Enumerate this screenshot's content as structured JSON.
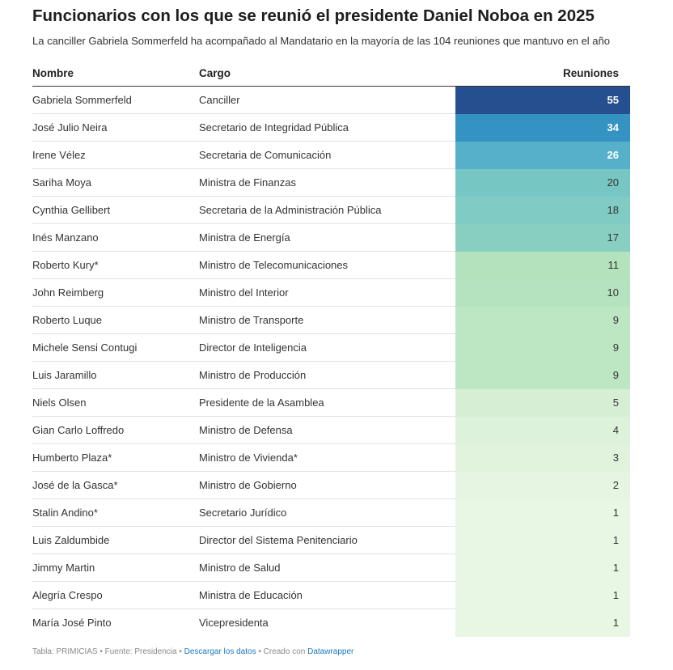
{
  "header": {
    "title": "Funcionarios con los que se reunió el presidente Daniel Noboa en 2025",
    "subtitle": "La canciller Gabriela Sommerfeld ha acompañado al Mandatario en la mayoría de las 104 reuniones que mantuvo en el año"
  },
  "table": {
    "col_name": "Nombre",
    "col_cargo": "Cargo",
    "col_value": "Reuniones"
  },
  "chart_data": {
    "type": "table",
    "title": "Funcionarios con los que se reunió el presidente Daniel Noboa en 2025",
    "columns": [
      "Nombre",
      "Cargo",
      "Reuniones"
    ],
    "rows": [
      {
        "name": "Gabriela Sommerfeld",
        "cargo": "Canciller",
        "value": 55,
        "color": "#264f8f",
        "text_color": "#ffffff"
      },
      {
        "name": "José Julio Neira",
        "cargo": "Secretario de Integridad Pública",
        "value": 34,
        "color": "#3593c4",
        "text_color": "#ffffff"
      },
      {
        "name": "Irene Vélez",
        "cargo": "Secretaria de Comunicación",
        "value": 26,
        "color": "#56b0c9",
        "text_color": "#ffffff"
      },
      {
        "name": "Sariha Moya",
        "cargo": "Ministra de Finanzas",
        "value": 20,
        "color": "#76c6c4",
        "text_color": "#333333"
      },
      {
        "name": "Cynthia Gellibert",
        "cargo": "Secretaria de la Administración Pública",
        "value": 18,
        "color": "#80cbc3",
        "text_color": "#333333"
      },
      {
        "name": "Inés Manzano",
        "cargo": "Ministra de Energía",
        "value": 17,
        "color": "#88cfc1",
        "text_color": "#333333"
      },
      {
        "name": "Roberto Kury*",
        "cargo": "Ministro de Telecomunicaciones",
        "value": 11,
        "color": "#b3e2bd",
        "text_color": "#333333"
      },
      {
        "name": "John Reimberg",
        "cargo": "Ministro del Interior",
        "value": 10,
        "color": "#b6e3bf",
        "text_color": "#333333"
      },
      {
        "name": "Roberto Luque",
        "cargo": "Ministro de Transporte",
        "value": 9,
        "color": "#bde6c2",
        "text_color": "#333333"
      },
      {
        "name": "Michele Sensi Contugi",
        "cargo": "Director de Inteligencia",
        "value": 9,
        "color": "#bde6c2",
        "text_color": "#333333"
      },
      {
        "name": "Luis Jaramillo",
        "cargo": "Ministro de Producción",
        "value": 9,
        "color": "#bde6c2",
        "text_color": "#333333"
      },
      {
        "name": "Niels Olsen",
        "cargo": "Presidente de la Asamblea",
        "value": 5,
        "color": "#d6efd4",
        "text_color": "#333333"
      },
      {
        "name": "Gian Carlo Loffredo",
        "cargo": "Ministro de Defensa",
        "value": 4,
        "color": "#ddf2da",
        "text_color": "#333333"
      },
      {
        "name": "Humberto Plaza*",
        "cargo": "Ministro de Vivienda*",
        "value": 3,
        "color": "#e1f3dd",
        "text_color": "#333333"
      },
      {
        "name": "José de la Gasca*",
        "cargo": "Ministro de Gobierno",
        "value": 2,
        "color": "#e5f5e1",
        "text_color": "#333333"
      },
      {
        "name": "Stalin Andino*",
        "cargo": "Secretario Jurídico",
        "value": 1,
        "color": "#e8f6e4",
        "text_color": "#333333"
      },
      {
        "name": "Luis Zaldumbide",
        "cargo": "Director del Sistema Penitenciario",
        "value": 1,
        "color": "#e8f6e4",
        "text_color": "#333333"
      },
      {
        "name": "Jimmy Martin",
        "cargo": "Ministro de Salud",
        "value": 1,
        "color": "#e8f6e4",
        "text_color": "#333333"
      },
      {
        "name": "Alegría Crespo",
        "cargo": "Ministra de Educación",
        "value": 1,
        "color": "#e8f6e4",
        "text_color": "#333333"
      },
      {
        "name": "María José Pinto",
        "cargo": "Vicepresidenta",
        "value": 1,
        "color": "#e8f6e4",
        "text_color": "#333333"
      }
    ]
  },
  "footer": {
    "source": "Tabla: PRIMICIAS • Fuente: Presidencia • ",
    "download_link": "Descargar los datos",
    "created": " • Creado con ",
    "tool_link": "Datawrapper"
  }
}
